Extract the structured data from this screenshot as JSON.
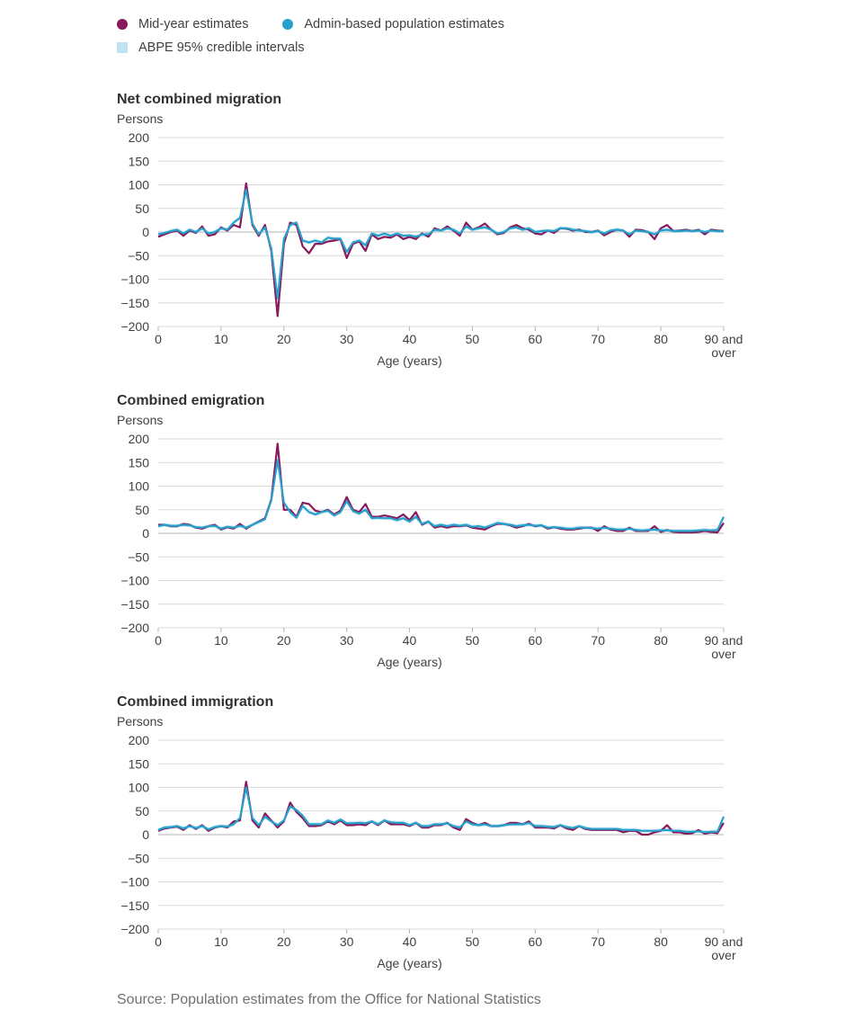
{
  "legend": {
    "mye_label": "Mid-year estimates",
    "abpe_label": "Admin-based population estimates",
    "ci_label": "ABPE 95% credible intervals"
  },
  "colors": {
    "mye": "#871a5b",
    "abpe": "#27a0cc",
    "ci": "#bfe3ef",
    "grid": "#d9d9d9",
    "axis": "#b3b3b3"
  },
  "source": "Source: Population estimates from the Office for National Statistics",
  "chart_data": [
    {
      "type": "line",
      "title": "Net combined migration",
      "ylabel": "Persons",
      "xlabel": "Age (years)",
      "ylim": [
        -200,
        200
      ],
      "yticks": [
        "200",
        "150",
        "100",
        "50",
        "0",
        "−50",
        "−100",
        "−150",
        "−200"
      ],
      "xticks": [
        "0",
        "10",
        "20",
        "30",
        "40",
        "50",
        "60",
        "70",
        "80",
        "90 and over"
      ],
      "x": [
        0,
        1,
        2,
        3,
        4,
        5,
        6,
        7,
        8,
        9,
        10,
        11,
        12,
        13,
        14,
        15,
        16,
        17,
        18,
        19,
        20,
        21,
        22,
        23,
        24,
        25,
        26,
        27,
        28,
        29,
        30,
        31,
        32,
        33,
        34,
        35,
        36,
        37,
        38,
        39,
        40,
        41,
        42,
        43,
        44,
        45,
        46,
        47,
        48,
        49,
        50,
        51,
        52,
        53,
        54,
        55,
        56,
        57,
        58,
        59,
        60,
        61,
        62,
        63,
        64,
        65,
        66,
        67,
        68,
        69,
        70,
        71,
        72,
        73,
        74,
        75,
        76,
        77,
        78,
        79,
        80,
        81,
        82,
        83,
        84,
        85,
        86,
        87,
        88,
        89,
        90
      ],
      "series": [
        {
          "name": "Mid-year estimates",
          "key": "mye",
          "values": [
            -10,
            -5,
            0,
            3,
            -8,
            3,
            -2,
            12,
            -8,
            -5,
            10,
            3,
            15,
            10,
            103,
            15,
            -8,
            15,
            -40,
            -178,
            -25,
            20,
            15,
            -30,
            -45,
            -25,
            -25,
            -20,
            -18,
            -15,
            -55,
            -25,
            -20,
            -40,
            -5,
            -15,
            -10,
            -12,
            -5,
            -15,
            -10,
            -15,
            -3,
            -10,
            8,
            3,
            12,
            3,
            -8,
            20,
            5,
            10,
            18,
            5,
            -5,
            -2,
            10,
            15,
            8,
            5,
            -3,
            -5,
            3,
            -2,
            8,
            7,
            3,
            5,
            0,
            0,
            3,
            -7,
            0,
            5,
            3,
            -10,
            5,
            4,
            0,
            -15,
            8,
            15,
            2,
            3,
            5,
            2,
            5,
            -5,
            5,
            3,
            2
          ]
        },
        {
          "name": "Admin-based population estimates",
          "key": "abpe",
          "values": [
            -5,
            -2,
            2,
            5,
            -3,
            5,
            0,
            8,
            -3,
            0,
            8,
            5,
            20,
            30,
            90,
            18,
            -5,
            10,
            -35,
            -140,
            -15,
            15,
            20,
            -18,
            -22,
            -18,
            -22,
            -12,
            -14,
            -14,
            -42,
            -22,
            -18,
            -28,
            -3,
            -8,
            -3,
            -8,
            -3,
            -8,
            -7,
            -10,
            -5,
            -5,
            5,
            3,
            8,
            5,
            -3,
            12,
            5,
            8,
            10,
            5,
            -3,
            0,
            8,
            10,
            5,
            8,
            0,
            2,
            3,
            2,
            8,
            8,
            5,
            3,
            2,
            0,
            2,
            -3,
            3,
            5,
            3,
            -5,
            3,
            2,
            0,
            -5,
            3,
            5,
            2,
            2,
            3,
            2,
            3,
            0,
            3,
            2,
            2
          ]
        }
      ]
    },
    {
      "type": "line",
      "title": "Combined emigration",
      "ylabel": "Persons",
      "xlabel": "Age (years)",
      "ylim": [
        -200,
        200
      ],
      "yticks": [
        "200",
        "150",
        "100",
        "50",
        "0",
        "−50",
        "−100",
        "−150",
        "−200"
      ],
      "xticks": [
        "0",
        "10",
        "20",
        "30",
        "40",
        "50",
        "60",
        "70",
        "80",
        "90 and over"
      ],
      "x": [
        0,
        1,
        2,
        3,
        4,
        5,
        6,
        7,
        8,
        9,
        10,
        11,
        12,
        13,
        14,
        15,
        16,
        17,
        18,
        19,
        20,
        21,
        22,
        23,
        24,
        25,
        26,
        27,
        28,
        29,
        30,
        31,
        32,
        33,
        34,
        35,
        36,
        37,
        38,
        39,
        40,
        41,
        42,
        43,
        44,
        45,
        46,
        47,
        48,
        49,
        50,
        51,
        52,
        53,
        54,
        55,
        56,
        57,
        58,
        59,
        60,
        61,
        62,
        63,
        64,
        65,
        66,
        67,
        68,
        69,
        70,
        71,
        72,
        73,
        74,
        75,
        76,
        77,
        78,
        79,
        80,
        81,
        82,
        83,
        84,
        85,
        86,
        87,
        88,
        89,
        90
      ],
      "series": [
        {
          "name": "Mid-year estimates",
          "key": "mye",
          "values": [
            18,
            18,
            15,
            15,
            20,
            18,
            12,
            10,
            15,
            18,
            8,
            13,
            10,
            20,
            10,
            18,
            25,
            32,
            72,
            190,
            50,
            50,
            35,
            65,
            62,
            48,
            45,
            50,
            40,
            48,
            77,
            50,
            45,
            62,
            35,
            35,
            38,
            35,
            32,
            40,
            28,
            45,
            18,
            25,
            12,
            15,
            12,
            15,
            15,
            17,
            12,
            10,
            8,
            15,
            20,
            20,
            17,
            12,
            15,
            20,
            15,
            17,
            10,
            13,
            10,
            8,
            8,
            10,
            12,
            12,
            5,
            15,
            8,
            5,
            5,
            12,
            5,
            5,
            5,
            15,
            3,
            7,
            3,
            2,
            2,
            2,
            3,
            5,
            3,
            2,
            22
          ]
        },
        {
          "name": "Admin-based population estimates",
          "key": "abpe",
          "values": [
            15,
            18,
            16,
            16,
            18,
            17,
            13,
            12,
            15,
            16,
            10,
            14,
            12,
            16,
            12,
            18,
            24,
            30,
            70,
            155,
            65,
            45,
            33,
            58,
            45,
            40,
            45,
            48,
            38,
            45,
            68,
            47,
            42,
            50,
            32,
            33,
            32,
            32,
            28,
            32,
            25,
            35,
            20,
            25,
            15,
            18,
            15,
            18,
            16,
            18,
            14,
            15,
            12,
            17,
            22,
            20,
            18,
            15,
            17,
            18,
            16,
            17,
            12,
            13,
            12,
            10,
            10,
            12,
            12,
            11,
            10,
            12,
            10,
            8,
            8,
            10,
            7,
            6,
            7,
            8,
            6,
            6,
            5,
            5,
            5,
            5,
            6,
            7,
            6,
            7,
            35
          ]
        }
      ]
    },
    {
      "type": "line",
      "title": "Combined immigration",
      "ylabel": "Persons",
      "xlabel": "Age (years)",
      "ylim": [
        -200,
        200
      ],
      "yticks": [
        "200",
        "150",
        "100",
        "50",
        "0",
        "−50",
        "−100",
        "−150",
        "−200"
      ],
      "xticks": [
        "0",
        "10",
        "20",
        "30",
        "40",
        "50",
        "60",
        "70",
        "80",
        "90 and over"
      ],
      "x": [
        0,
        1,
        2,
        3,
        4,
        5,
        6,
        7,
        8,
        9,
        10,
        11,
        12,
        13,
        14,
        15,
        16,
        17,
        18,
        19,
        20,
        21,
        22,
        23,
        24,
        25,
        26,
        27,
        28,
        29,
        30,
        31,
        32,
        33,
        34,
        35,
        36,
        37,
        38,
        39,
        40,
        41,
        42,
        43,
        44,
        45,
        46,
        47,
        48,
        49,
        50,
        51,
        52,
        53,
        54,
        55,
        56,
        57,
        58,
        59,
        60,
        61,
        62,
        63,
        64,
        65,
        66,
        67,
        68,
        69,
        70,
        71,
        72,
        73,
        74,
        75,
        76,
        77,
        78,
        79,
        80,
        81,
        82,
        83,
        84,
        85,
        86,
        87,
        88,
        89,
        90
      ],
      "series": [
        {
          "name": "Mid-year estimates",
          "key": "mye",
          "values": [
            8,
            13,
            15,
            17,
            10,
            20,
            12,
            20,
            8,
            15,
            18,
            15,
            28,
            30,
            112,
            30,
            15,
            45,
            30,
            15,
            28,
            68,
            48,
            35,
            18,
            18,
            20,
            28,
            22,
            30,
            20,
            20,
            22,
            20,
            28,
            20,
            30,
            22,
            22,
            22,
            18,
            25,
            15,
            15,
            20,
            20,
            25,
            15,
            10,
            33,
            25,
            20,
            25,
            18,
            18,
            20,
            25,
            25,
            22,
            28,
            15,
            15,
            15,
            13,
            20,
            13,
            10,
            18,
            12,
            10,
            10,
            10,
            10,
            10,
            5,
            8,
            8,
            0,
            0,
            5,
            8,
            20,
            5,
            5,
            2,
            3,
            10,
            2,
            5,
            3,
            25
          ]
        },
        {
          "name": "Admin-based population estimates",
          "key": "abpe",
          "values": [
            10,
            15,
            16,
            18,
            13,
            18,
            14,
            18,
            11,
            16,
            18,
            17,
            22,
            35,
            100,
            35,
            20,
            38,
            28,
            20,
            30,
            60,
            52,
            40,
            22,
            22,
            22,
            30,
            25,
            32,
            24,
            24,
            25,
            24,
            28,
            22,
            30,
            26,
            25,
            25,
            20,
            25,
            18,
            18,
            22,
            22,
            24,
            18,
            15,
            28,
            22,
            20,
            22,
            18,
            18,
            20,
            22,
            22,
            22,
            25,
            18,
            18,
            17,
            16,
            20,
            16,
            14,
            18,
            14,
            12,
            12,
            12,
            12,
            12,
            10,
            10,
            10,
            8,
            8,
            8,
            9,
            10,
            8,
            8,
            6,
            6,
            7,
            5,
            6,
            6,
            38
          ]
        }
      ]
    }
  ]
}
